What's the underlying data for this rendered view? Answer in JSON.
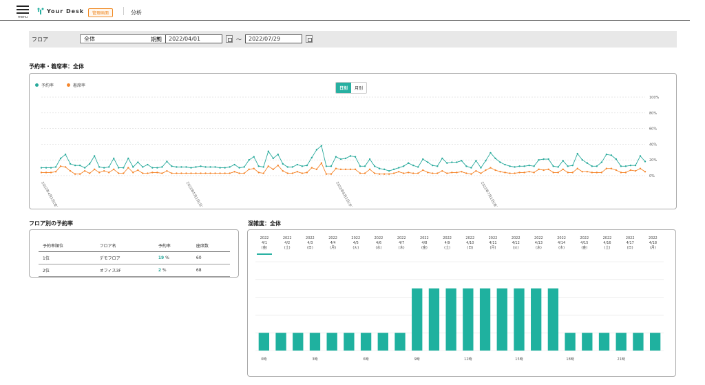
{
  "header": {
    "menu_label": "menu",
    "logo_text": "Your Desk",
    "badge": "管理画面",
    "nav_item": "分析"
  },
  "filter": {
    "floor_label": "フロア",
    "floor_value": "全体",
    "period_label": "期間",
    "start_date": "2022/04/01",
    "tilde": "〜",
    "end_date": "2022/07/29"
  },
  "rate_section": {
    "title": "予約率・着席率：全体",
    "legend_reservation": "予約率",
    "legend_seated": "着席率",
    "toggle_daily": "日別",
    "toggle_monthly": "月別"
  },
  "floor_section": {
    "title": "フロア別の予約率",
    "columns": [
      "予約率順位",
      "フロア名",
      "予約率",
      "座席数"
    ],
    "rows": [
      {
        "rank": "1位",
        "floor": "デモフロア",
        "rate": "19",
        "unit": "%",
        "seats": "60"
      },
      {
        "rank": "2位",
        "floor": "オフィス3F",
        "rate": "2",
        "unit": "%",
        "seats": "68"
      }
    ]
  },
  "congestion_section": {
    "title": "混雑度：全体",
    "days": [
      {
        "y": "2022",
        "d": "4/1",
        "w": "(金)"
      },
      {
        "y": "2022",
        "d": "4/2",
        "w": "(土)"
      },
      {
        "y": "2022",
        "d": "4/3",
        "w": "(日)"
      },
      {
        "y": "2022",
        "d": "4/4",
        "w": "(月)"
      },
      {
        "y": "2022",
        "d": "4/5",
        "w": "(火)"
      },
      {
        "y": "2022",
        "d": "4/6",
        "w": "(水)"
      },
      {
        "y": "2022",
        "d": "4/7",
        "w": "(木)"
      },
      {
        "y": "2022",
        "d": "4/8",
        "w": "(金)"
      },
      {
        "y": "2022",
        "d": "4/9",
        "w": "(土)"
      },
      {
        "y": "2022",
        "d": "4/10",
        "w": "(日)"
      },
      {
        "y": "2022",
        "d": "4/11",
        "w": "(月)"
      },
      {
        "y": "2022",
        "d": "4/12",
        "w": "(火)"
      },
      {
        "y": "2022",
        "d": "4/13",
        "w": "(水)"
      },
      {
        "y": "2022",
        "d": "4/14",
        "w": "(木)"
      },
      {
        "y": "2022",
        "d": "4/15",
        "w": "(金)"
      },
      {
        "y": "2022",
        "d": "4/16",
        "w": "(土)"
      },
      {
        "y": "2022",
        "d": "4/17",
        "w": "(日)"
      },
      {
        "y": "2022",
        "d": "4/18",
        "w": "(月)"
      }
    ]
  },
  "chart_data": [
    {
      "type": "line",
      "colors": {
        "予約率": "#27a99b",
        "着席率": "#f5862c"
      },
      "yticks": [
        "0%",
        "20%",
        "40%",
        "60%",
        "80%",
        "100%"
      ],
      "ylim": [
        0,
        100
      ],
      "xticks": [
        "2022年4月1日(金)",
        "2022年5月1日(日)",
        "2022年6月1日(水)",
        "2022年7月1日(金)"
      ],
      "series": [
        {
          "name": "予約率",
          "values": [
            10,
            10,
            10,
            11,
            22,
            27,
            15,
            13,
            13,
            10,
            15,
            25,
            11,
            10,
            11,
            22,
            10,
            10,
            22,
            11,
            17,
            11,
            14,
            10,
            10,
            11,
            18,
            12,
            11,
            11,
            11,
            10,
            11,
            12,
            11,
            11,
            11,
            10,
            10,
            11,
            14,
            10,
            11,
            20,
            24,
            12,
            11,
            31,
            22,
            27,
            15,
            11,
            11,
            14,
            12,
            13,
            23,
            33,
            38,
            12,
            12,
            24,
            21,
            22,
            25,
            24,
            12,
            12,
            21,
            12,
            9,
            8,
            6,
            8,
            10,
            12,
            16,
            13,
            11,
            21,
            17,
            13,
            12,
            22,
            16,
            17,
            17,
            19,
            12,
            10,
            19,
            10,
            19,
            29,
            22,
            17,
            14,
            12,
            11,
            12,
            12,
            13,
            12,
            20,
            21,
            21,
            12,
            11,
            19,
            12,
            13,
            28,
            20,
            16,
            12,
            12,
            17,
            27,
            26,
            21,
            12,
            12,
            13,
            13,
            25,
            18
          ]
        },
        {
          "name": "着席率",
          "values": [
            4,
            4,
            4,
            5,
            12,
            11,
            6,
            2,
            2,
            6,
            3,
            8,
            4,
            6,
            4,
            8,
            3,
            3,
            10,
            4,
            7,
            3,
            3,
            4,
            4,
            3,
            6,
            3,
            3,
            3,
            3,
            3,
            3,
            3,
            3,
            3,
            3,
            3,
            3,
            3,
            5,
            3,
            3,
            8,
            9,
            4,
            3,
            12,
            8,
            13,
            6,
            3,
            3,
            5,
            3,
            4,
            10,
            8,
            16,
            2,
            2,
            9,
            8,
            8,
            8,
            8,
            3,
            3,
            8,
            3,
            2,
            2,
            2,
            3,
            5,
            3,
            4,
            3,
            3,
            7,
            4,
            3,
            3,
            6,
            3,
            4,
            4,
            5,
            3,
            2,
            6,
            3,
            7,
            10,
            7,
            5,
            4,
            3,
            3,
            4,
            4,
            5,
            4,
            8,
            7,
            8,
            4,
            4,
            8,
            4,
            4,
            9,
            5,
            5,
            4,
            4,
            4,
            9,
            9,
            7,
            4,
            4,
            7,
            6,
            9,
            5
          ]
        }
      ]
    },
    {
      "type": "bar",
      "categories": [
        "0時",
        "1時",
        "2時",
        "3時",
        "4時",
        "5時",
        "6時",
        "7時",
        "8時",
        "9時",
        "10時",
        "11時",
        "12時",
        "13時",
        "14時",
        "15時",
        "16時",
        "17時",
        "18時",
        "19時",
        "20時",
        "21時",
        "22時",
        "23時"
      ],
      "xticks": [
        "0時",
        "3時",
        "6時",
        "9時",
        "12時",
        "15時",
        "18時",
        "21時"
      ],
      "values": [
        2,
        2,
        2,
        2,
        2,
        2,
        2,
        2,
        2,
        7,
        7,
        7,
        7,
        7,
        7,
        7,
        7,
        7,
        2,
        2,
        2,
        2,
        2,
        2
      ],
      "ylim": [
        0,
        10
      ],
      "color": "#1fb19f"
    }
  ]
}
